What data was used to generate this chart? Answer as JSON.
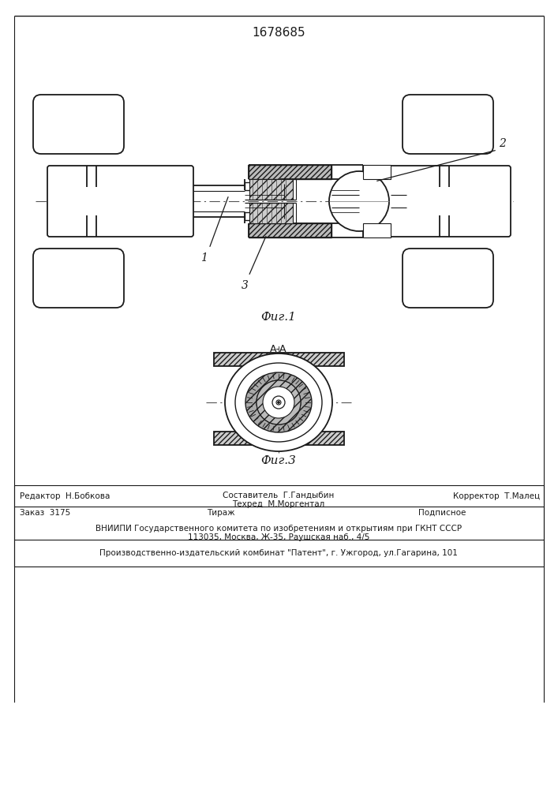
{
  "patent_number": "1678685",
  "fig1_caption": "Фиг.1",
  "fig3_caption": "Фиг.3",
  "fig3_label": "А-А",
  "bg_color": "#ffffff",
  "line_color": "#1a1a1a"
}
